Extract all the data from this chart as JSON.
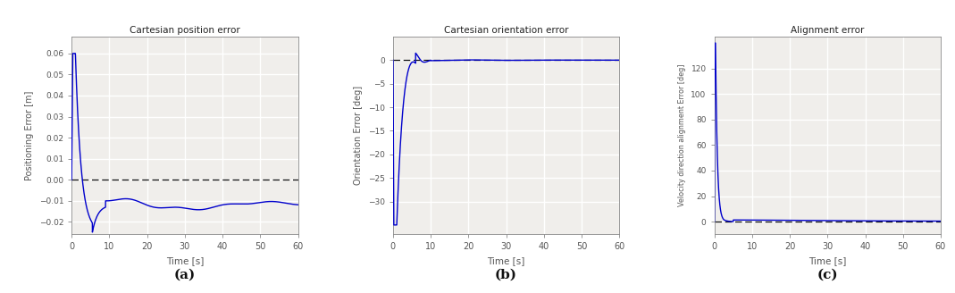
{
  "fig_width": 10.69,
  "fig_height": 3.28,
  "dpi": 100,
  "line_color": "#0000cc",
  "dashed_color": "#111111",
  "plot_bg_color": "#f0eeeb",
  "grid_color": "#ffffff",
  "fig_bg_color": "#ffffff",
  "spine_color": "#888888",
  "tick_color": "#555555",
  "subplot_titles": [
    "Cartesian position error",
    "Cartesian orientation error",
    "Alignment error"
  ],
  "xlabels": [
    "Time [s]",
    "Time [s]",
    "Time [s]"
  ],
  "ylabels": [
    "Positioning Error [m]",
    "Orientation Error [deg]",
    "Velocity direction alignment Error [deg]"
  ],
  "panel_labels": [
    "(a)",
    "(b)",
    "(c)"
  ],
  "plot_a": {
    "ylim": [
      -0.026,
      0.068
    ],
    "yticks": [
      -0.02,
      -0.01,
      0.0,
      0.01,
      0.02,
      0.03,
      0.04,
      0.05,
      0.06
    ],
    "xticks": [
      0,
      10,
      20,
      30,
      40,
      50,
      60
    ]
  },
  "plot_b": {
    "ylim": [
      -37,
      5
    ],
    "yticks": [
      -30,
      -25,
      -20,
      -15,
      -10,
      -5,
      0
    ],
    "xticks": [
      0,
      10,
      20,
      30,
      40,
      50,
      60
    ]
  },
  "plot_c": {
    "ylim": [
      -10,
      145
    ],
    "yticks": [
      0,
      20,
      40,
      60,
      80,
      100,
      120
    ],
    "xticks": [
      0,
      10,
      20,
      30,
      40,
      50,
      60
    ]
  }
}
